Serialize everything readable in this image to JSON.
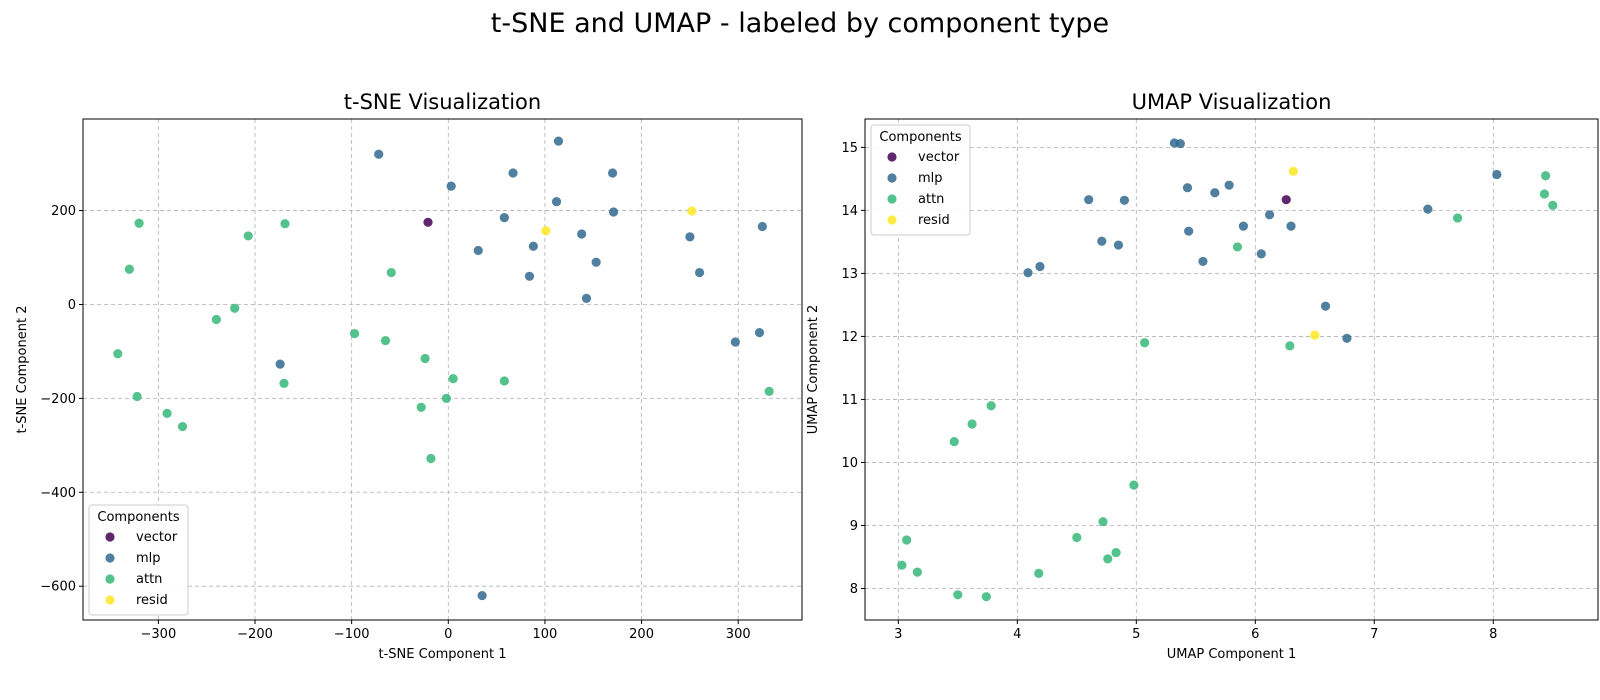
{
  "figure": {
    "suptitle": "t-SNE and UMAP - labeled by component type"
  },
  "chart_data": [
    {
      "type": "scatter",
      "title": "t-SNE Visualization",
      "xlabel": "t-SNE Component 1",
      "ylabel": "t-SNE Component 2",
      "xlim": [
        -378,
        366
      ],
      "ylim": [
        -672,
        395
      ],
      "xticks": [
        -300,
        -200,
        -100,
        0,
        100,
        200,
        300
      ],
      "yticks": [
        -600,
        -400,
        -200,
        0,
        200
      ],
      "tick_labels_x": [
        "−300",
        "−200",
        "−100",
        "0",
        "100",
        "200",
        "300"
      ],
      "tick_labels_y": [
        "−600",
        "−400",
        "−200",
        "0",
        "200"
      ],
      "grid": true,
      "legend": {
        "title": "Components",
        "position": "lower-left"
      },
      "series": [
        {
          "name": "vector",
          "color": "#440154",
          "points": [
            [
              -21,
              175
            ]
          ]
        },
        {
          "name": "mlp",
          "color": "#31688e",
          "points": [
            [
              -72,
              320
            ],
            [
              3,
              252
            ],
            [
              67,
              280
            ],
            [
              114,
              348
            ],
            [
              170,
              280
            ],
            [
              58,
              185
            ],
            [
              112,
              219
            ],
            [
              171,
              197
            ],
            [
              31,
              115
            ],
            [
              88,
              124
            ],
            [
              138,
              150
            ],
            [
              84,
              60
            ],
            [
              153,
              90
            ],
            [
              143,
              13
            ],
            [
              250,
              144
            ],
            [
              325,
              166
            ],
            [
              260,
              68
            ],
            [
              322,
              -60
            ],
            [
              297,
              -80
            ],
            [
              -174,
              -127
            ],
            [
              35,
              -620
            ]
          ]
        },
        {
          "name": "attn",
          "color": "#35b779",
          "points": [
            [
              -320,
              173
            ],
            [
              -330,
              75
            ],
            [
              -207,
              146
            ],
            [
              -169,
              172
            ],
            [
              -59,
              68
            ],
            [
              -221,
              -8
            ],
            [
              -240,
              -32
            ],
            [
              -342,
              -105
            ],
            [
              -97,
              -62
            ],
            [
              -65,
              -77
            ],
            [
              -24,
              -115
            ],
            [
              5,
              -158
            ],
            [
              58,
              -163
            ],
            [
              -170,
              -168
            ],
            [
              -322,
              -196
            ],
            [
              -291,
              -232
            ],
            [
              -275,
              -260
            ],
            [
              -28,
              -219
            ],
            [
              -2,
              -200
            ],
            [
              -18,
              -328
            ],
            [
              332,
              -185
            ]
          ]
        },
        {
          "name": "resid",
          "color": "#fde725",
          "points": [
            [
              252,
              199
            ],
            [
              101,
              157
            ]
          ]
        }
      ]
    },
    {
      "type": "scatter",
      "title": "UMAP Visualization",
      "xlabel": "UMAP Component 1",
      "ylabel": "UMAP Component 2",
      "xlim": [
        2.72,
        8.88
      ],
      "ylim": [
        7.5,
        15.45
      ],
      "xticks": [
        3,
        4,
        5,
        6,
        7,
        8
      ],
      "yticks": [
        8,
        9,
        10,
        11,
        12,
        13,
        14,
        15
      ],
      "tick_labels_x": [
        "3",
        "4",
        "5",
        "6",
        "7",
        "8"
      ],
      "tick_labels_y": [
        "8",
        "9",
        "10",
        "11",
        "12",
        "13",
        "14",
        "15"
      ],
      "grid": true,
      "legend": {
        "title": "Components",
        "position": "upper-left"
      },
      "series": [
        {
          "name": "vector",
          "color": "#440154",
          "points": [
            [
              6.26,
              14.17
            ]
          ]
        },
        {
          "name": "mlp",
          "color": "#31688e",
          "points": [
            [
              5.32,
              15.07
            ],
            [
              5.37,
              15.06
            ],
            [
              4.6,
              14.17
            ],
            [
              4.9,
              14.16
            ],
            [
              5.43,
              14.36
            ],
            [
              5.66,
              14.28
            ],
            [
              5.78,
              14.4
            ],
            [
              6.12,
              13.93
            ],
            [
              6.3,
              13.75
            ],
            [
              5.9,
              13.75
            ],
            [
              5.44,
              13.67
            ],
            [
              4.71,
              13.51
            ],
            [
              4.85,
              13.45
            ],
            [
              6.05,
              13.31
            ],
            [
              5.56,
              13.19
            ],
            [
              4.19,
              13.11
            ],
            [
              4.09,
              13.01
            ],
            [
              6.59,
              12.48
            ],
            [
              6.77,
              11.97
            ],
            [
              7.45,
              14.02
            ],
            [
              8.03,
              14.57
            ]
          ]
        },
        {
          "name": "attn",
          "color": "#35b779",
          "points": [
            [
              5.85,
              13.42
            ],
            [
              6.29,
              11.85
            ],
            [
              5.07,
              11.9
            ],
            [
              3.78,
              10.9
            ],
            [
              3.62,
              10.61
            ],
            [
              3.47,
              10.33
            ],
            [
              4.98,
              9.64
            ],
            [
              4.72,
              9.06
            ],
            [
              4.5,
              8.81
            ],
            [
              4.83,
              8.57
            ],
            [
              4.76,
              8.47
            ],
            [
              3.07,
              8.77
            ],
            [
              3.03,
              8.37
            ],
            [
              3.16,
              8.26
            ],
            [
              4.18,
              8.24
            ],
            [
              3.5,
              7.9
            ],
            [
              3.74,
              7.87
            ],
            [
              7.7,
              13.88
            ],
            [
              8.43,
              14.26
            ],
            [
              8.44,
              14.55
            ],
            [
              8.5,
              14.08
            ]
          ]
        },
        {
          "name": "resid",
          "color": "#fde725",
          "points": [
            [
              6.32,
              14.62
            ],
            [
              6.5,
              12.02
            ]
          ]
        }
      ]
    }
  ]
}
